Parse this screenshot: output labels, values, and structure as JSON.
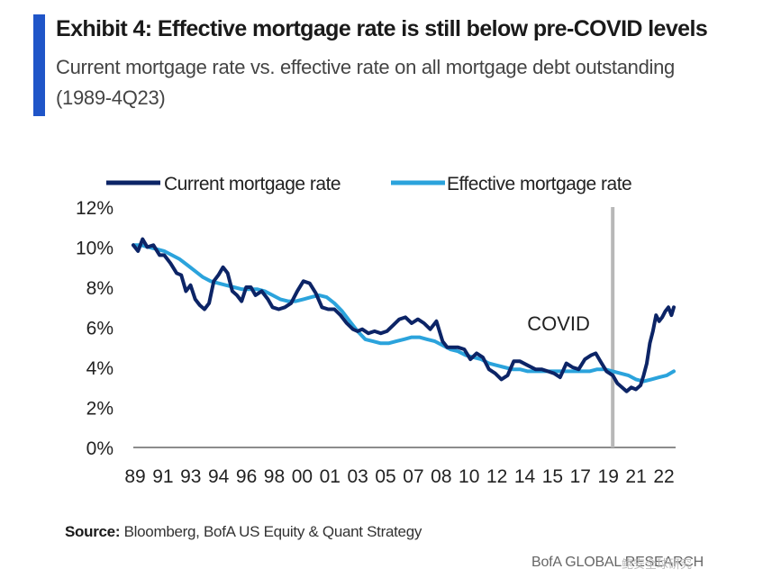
{
  "header": {
    "title": "Exhibit 4: Effective mortgage rate is still below pre-COVID levels",
    "subtitle": "Current mortgage rate vs. effective rate on all mortgage debt outstanding (1989-4Q23)",
    "accent_color": "#1f55c8"
  },
  "chart_data": {
    "type": "line",
    "x_tick_labels": [
      "89",
      "91",
      "93",
      "94",
      "96",
      "98",
      "00",
      "01",
      "03",
      "05",
      "07",
      "08",
      "10",
      "12",
      "14",
      "15",
      "17",
      "19",
      "21",
      "22"
    ],
    "y_tick_labels": [
      "0%",
      "2%",
      "4%",
      "6%",
      "8%",
      "10%",
      "12%"
    ],
    "ylim": [
      0,
      12
    ],
    "xlim": [
      1989,
      2023.95
    ],
    "grid": false,
    "legend_position": "top",
    "annotation": {
      "text": "COVID",
      "x": 2020.0
    },
    "series": [
      {
        "name": "Current mortgage rate",
        "color": "#0c2466",
        "x": [
          1989.0,
          1989.3,
          1989.6,
          1989.9,
          1990.3,
          1990.7,
          1991.0,
          1991.4,
          1991.8,
          1992.1,
          1992.4,
          1992.7,
          1993.0,
          1993.3,
          1993.6,
          1993.9,
          1994.2,
          1994.5,
          1994.8,
          1995.1,
          1995.4,
          1995.7,
          1996.0,
          1996.3,
          1996.6,
          1996.9,
          1997.3,
          1997.7,
          1998.0,
          1998.4,
          1998.8,
          1999.2,
          1999.6,
          2000.0,
          2000.4,
          2000.8,
          2001.2,
          2001.6,
          2002.0,
          2002.4,
          2002.8,
          2003.2,
          2003.5,
          2003.8,
          2004.2,
          2004.6,
          2005.0,
          2005.4,
          2005.8,
          2006.2,
          2006.6,
          2007.0,
          2007.4,
          2007.8,
          2008.2,
          2008.6,
          2009.0,
          2009.3,
          2009.7,
          2010.0,
          2010.4,
          2010.8,
          2011.2,
          2011.6,
          2012.0,
          2012.4,
          2012.8,
          2013.2,
          2013.6,
          2014.0,
          2014.5,
          2015.0,
          2015.4,
          2015.8,
          2016.2,
          2016.6,
          2017.0,
          2017.4,
          2017.8,
          2018.2,
          2018.6,
          2018.9,
          2019.2,
          2019.6,
          2020.0,
          2020.3,
          2020.6,
          2020.9,
          2021.2,
          2021.5,
          2021.8,
          2022.0,
          2022.2,
          2022.4,
          2022.6,
          2022.8,
          2023.0,
          2023.2,
          2023.4,
          2023.6,
          2023.8,
          2023.95
        ],
        "values": [
          10.1,
          9.8,
          10.4,
          10.0,
          10.1,
          9.6,
          9.6,
          9.2,
          8.7,
          8.6,
          7.8,
          8.1,
          7.4,
          7.1,
          6.9,
          7.2,
          8.3,
          8.6,
          9.0,
          8.7,
          7.8,
          7.6,
          7.3,
          8.0,
          8.0,
          7.6,
          7.8,
          7.4,
          7.0,
          6.9,
          7.0,
          7.2,
          7.8,
          8.3,
          8.2,
          7.7,
          7.0,
          6.9,
          6.9,
          6.6,
          6.2,
          5.9,
          5.8,
          5.9,
          5.7,
          5.8,
          5.7,
          5.8,
          6.1,
          6.4,
          6.5,
          6.2,
          6.4,
          6.2,
          5.9,
          6.3,
          5.3,
          5.0,
          5.0,
          5.0,
          4.9,
          4.4,
          4.7,
          4.5,
          3.9,
          3.7,
          3.4,
          3.6,
          4.3,
          4.3,
          4.1,
          3.9,
          3.9,
          3.8,
          3.7,
          3.5,
          4.2,
          4.0,
          3.9,
          4.4,
          4.6,
          4.7,
          4.3,
          3.8,
          3.6,
          3.2,
          3.0,
          2.8,
          3.0,
          2.9,
          3.1,
          3.6,
          4.2,
          5.2,
          5.8,
          6.6,
          6.3,
          6.5,
          6.8,
          7.0,
          6.6,
          7.0
        ]
      },
      {
        "name": "Effective mortgage rate",
        "color": "#2ba3dc",
        "x": [
          1989.0,
          1989.5,
          1990.0,
          1990.5,
          1991.0,
          1991.5,
          1992.0,
          1992.5,
          1993.0,
          1993.5,
          1994.0,
          1994.5,
          1995.0,
          1995.5,
          1996.0,
          1996.5,
          1997.0,
          1997.5,
          1998.0,
          1998.5,
          1999.0,
          1999.5,
          2000.0,
          2000.5,
          2001.0,
          2001.5,
          2002.0,
          2002.5,
          2003.0,
          2003.5,
          2004.0,
          2004.5,
          2005.0,
          2005.5,
          2006.0,
          2006.5,
          2007.0,
          2007.5,
          2008.0,
          2008.5,
          2009.0,
          2009.5,
          2010.0,
          2010.5,
          2011.0,
          2011.5,
          2012.0,
          2012.5,
          2013.0,
          2013.5,
          2014.0,
          2014.5,
          2015.0,
          2015.5,
          2016.0,
          2016.5,
          2017.0,
          2017.5,
          2018.0,
          2018.5,
          2019.0,
          2019.5,
          2020.0,
          2020.5,
          2021.0,
          2021.5,
          2022.0,
          2022.5,
          2023.0,
          2023.5,
          2023.95
        ],
        "values": [
          10.1,
          10.1,
          10.0,
          9.9,
          9.8,
          9.6,
          9.4,
          9.1,
          8.8,
          8.5,
          8.3,
          8.2,
          8.1,
          8.0,
          7.9,
          7.9,
          7.9,
          7.8,
          7.6,
          7.4,
          7.3,
          7.3,
          7.4,
          7.5,
          7.6,
          7.5,
          7.2,
          6.8,
          6.3,
          5.8,
          5.4,
          5.3,
          5.2,
          5.2,
          5.3,
          5.4,
          5.5,
          5.5,
          5.4,
          5.3,
          5.1,
          4.9,
          4.8,
          4.6,
          4.5,
          4.4,
          4.2,
          4.1,
          4.0,
          3.9,
          3.9,
          3.8,
          3.8,
          3.8,
          3.8,
          3.8,
          3.8,
          3.8,
          3.8,
          3.8,
          3.9,
          3.9,
          3.8,
          3.7,
          3.6,
          3.4,
          3.3,
          3.4,
          3.5,
          3.6,
          3.8
        ]
      }
    ]
  },
  "source": {
    "label": "Source:",
    "text": "Bloomberg, BofA US Equity & Quant Strategy"
  },
  "footer": {
    "brand": "BofA GLOBAL RESEARCH",
    "watermark": "鲍安全球研究"
  }
}
